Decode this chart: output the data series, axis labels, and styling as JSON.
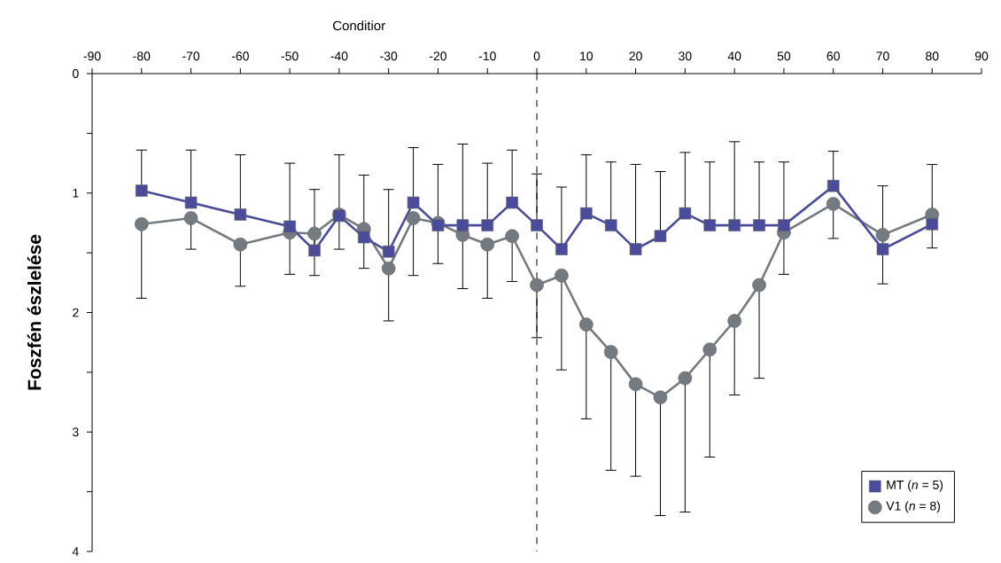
{
  "chart_data": {
    "type": "line",
    "xlabel": "Conditior",
    "ylabel": "Foszfén észlelése",
    "x": [
      -80,
      -70,
      -60,
      -50,
      -45,
      -40,
      -35,
      -30,
      -25,
      -20,
      -15,
      -10,
      -5,
      0,
      5,
      10,
      15,
      20,
      25,
      30,
      35,
      40,
      45,
      50,
      60,
      70,
      80
    ],
    "series": [
      {
        "name": "MT (*n* = 5)",
        "color": "#4b4b9b",
        "marker": "square",
        "values": [
          0.98,
          1.08,
          1.18,
          1.28,
          1.48,
          1.19,
          1.37,
          1.49,
          1.08,
          1.27,
          1.27,
          1.27,
          1.08,
          1.27,
          1.47,
          1.17,
          1.27,
          1.47,
          1.36,
          1.17,
          1.27,
          1.27,
          1.27,
          1.27,
          0.94,
          1.47,
          1.26
        ],
        "errors": [
          [
            0.64,
            0.98
          ],
          [
            0.64,
            1.08
          ],
          [
            0.68,
            1.18
          ],
          [
            0.75,
            1.28
          ],
          [
            0.97,
            1.48
          ],
          [
            0.68,
            1.19
          ],
          [
            0.85,
            1.37
          ],
          [
            0.97,
            1.49
          ],
          [
            0.62,
            1.08
          ],
          [
            0.76,
            1.27
          ],
          [
            0.59,
            1.27
          ],
          [
            0.75,
            1.27
          ],
          [
            0.64,
            1.08
          ],
          [
            0.84,
            1.27
          ],
          [
            0.95,
            1.47
          ],
          [
            0.68,
            1.17
          ],
          [
            0.74,
            1.27
          ],
          [
            0.76,
            1.47
          ],
          [
            0.82,
            1.36
          ],
          [
            0.66,
            1.17
          ],
          [
            0.74,
            1.27
          ],
          [
            0.57,
            1.27
          ],
          [
            0.74,
            1.27
          ],
          [
            0.74,
            1.27
          ],
          [
            0.65,
            0.94
          ],
          [
            0.94,
            1.47
          ],
          [
            0.76,
            1.26
          ]
        ]
      },
      {
        "name": "V1 (*n* = 8)",
        "color": "#737a80",
        "marker": "circle",
        "values": [
          1.26,
          1.21,
          1.43,
          1.33,
          1.34,
          1.18,
          1.3,
          1.63,
          1.21,
          1.25,
          1.35,
          1.43,
          1.36,
          1.77,
          1.69,
          2.1,
          2.33,
          2.6,
          2.71,
          2.55,
          2.31,
          2.07,
          1.77,
          1.33,
          1.09,
          1.35,
          1.18
        ],
        "errors": [
          [
            1.26,
            1.88
          ],
          [
            1.21,
            1.47
          ],
          [
            1.43,
            1.78
          ],
          [
            1.33,
            1.68
          ],
          [
            1.34,
            1.69
          ],
          [
            1.18,
            1.47
          ],
          [
            1.3,
            1.63
          ],
          [
            1.63,
            2.07
          ],
          [
            1.21,
            1.69
          ],
          [
            1.25,
            1.59
          ],
          [
            1.35,
            1.8
          ],
          [
            1.43,
            1.88
          ],
          [
            1.36,
            1.74
          ],
          [
            1.77,
            2.21
          ],
          [
            1.69,
            2.48
          ],
          [
            2.1,
            2.89
          ],
          [
            2.33,
            3.32
          ],
          [
            2.6,
            3.37
          ],
          [
            2.71,
            3.7
          ],
          [
            2.55,
            3.67
          ],
          [
            2.31,
            3.21
          ],
          [
            2.07,
            2.69
          ],
          [
            1.77,
            2.55
          ],
          [
            1.33,
            1.68
          ],
          [
            1.09,
            1.38
          ],
          [
            1.35,
            1.76
          ],
          [
            1.18,
            1.46
          ]
        ]
      }
    ],
    "xlim": [
      -90,
      90
    ],
    "xticks": [
      -90,
      -80,
      -70,
      -60,
      -50,
      -40,
      -30,
      -20,
      -10,
      0,
      10,
      20,
      30,
      40,
      50,
      60,
      70,
      80,
      90
    ],
    "ylim": [
      4,
      0
    ],
    "yticks": [
      0,
      {
        "value": 0.5,
        "label": null
      },
      1,
      {
        "value": 1.5,
        "label": null
      },
      2,
      {
        "value": 2.5,
        "label": null
      },
      3,
      {
        "value": 3.5,
        "label": null
      },
      4
    ],
    "ref_lines": [
      {
        "axis": "x",
        "value": 0,
        "color": "#000000",
        "line_style": "dashed"
      }
    ],
    "legend": "bottom right"
  }
}
